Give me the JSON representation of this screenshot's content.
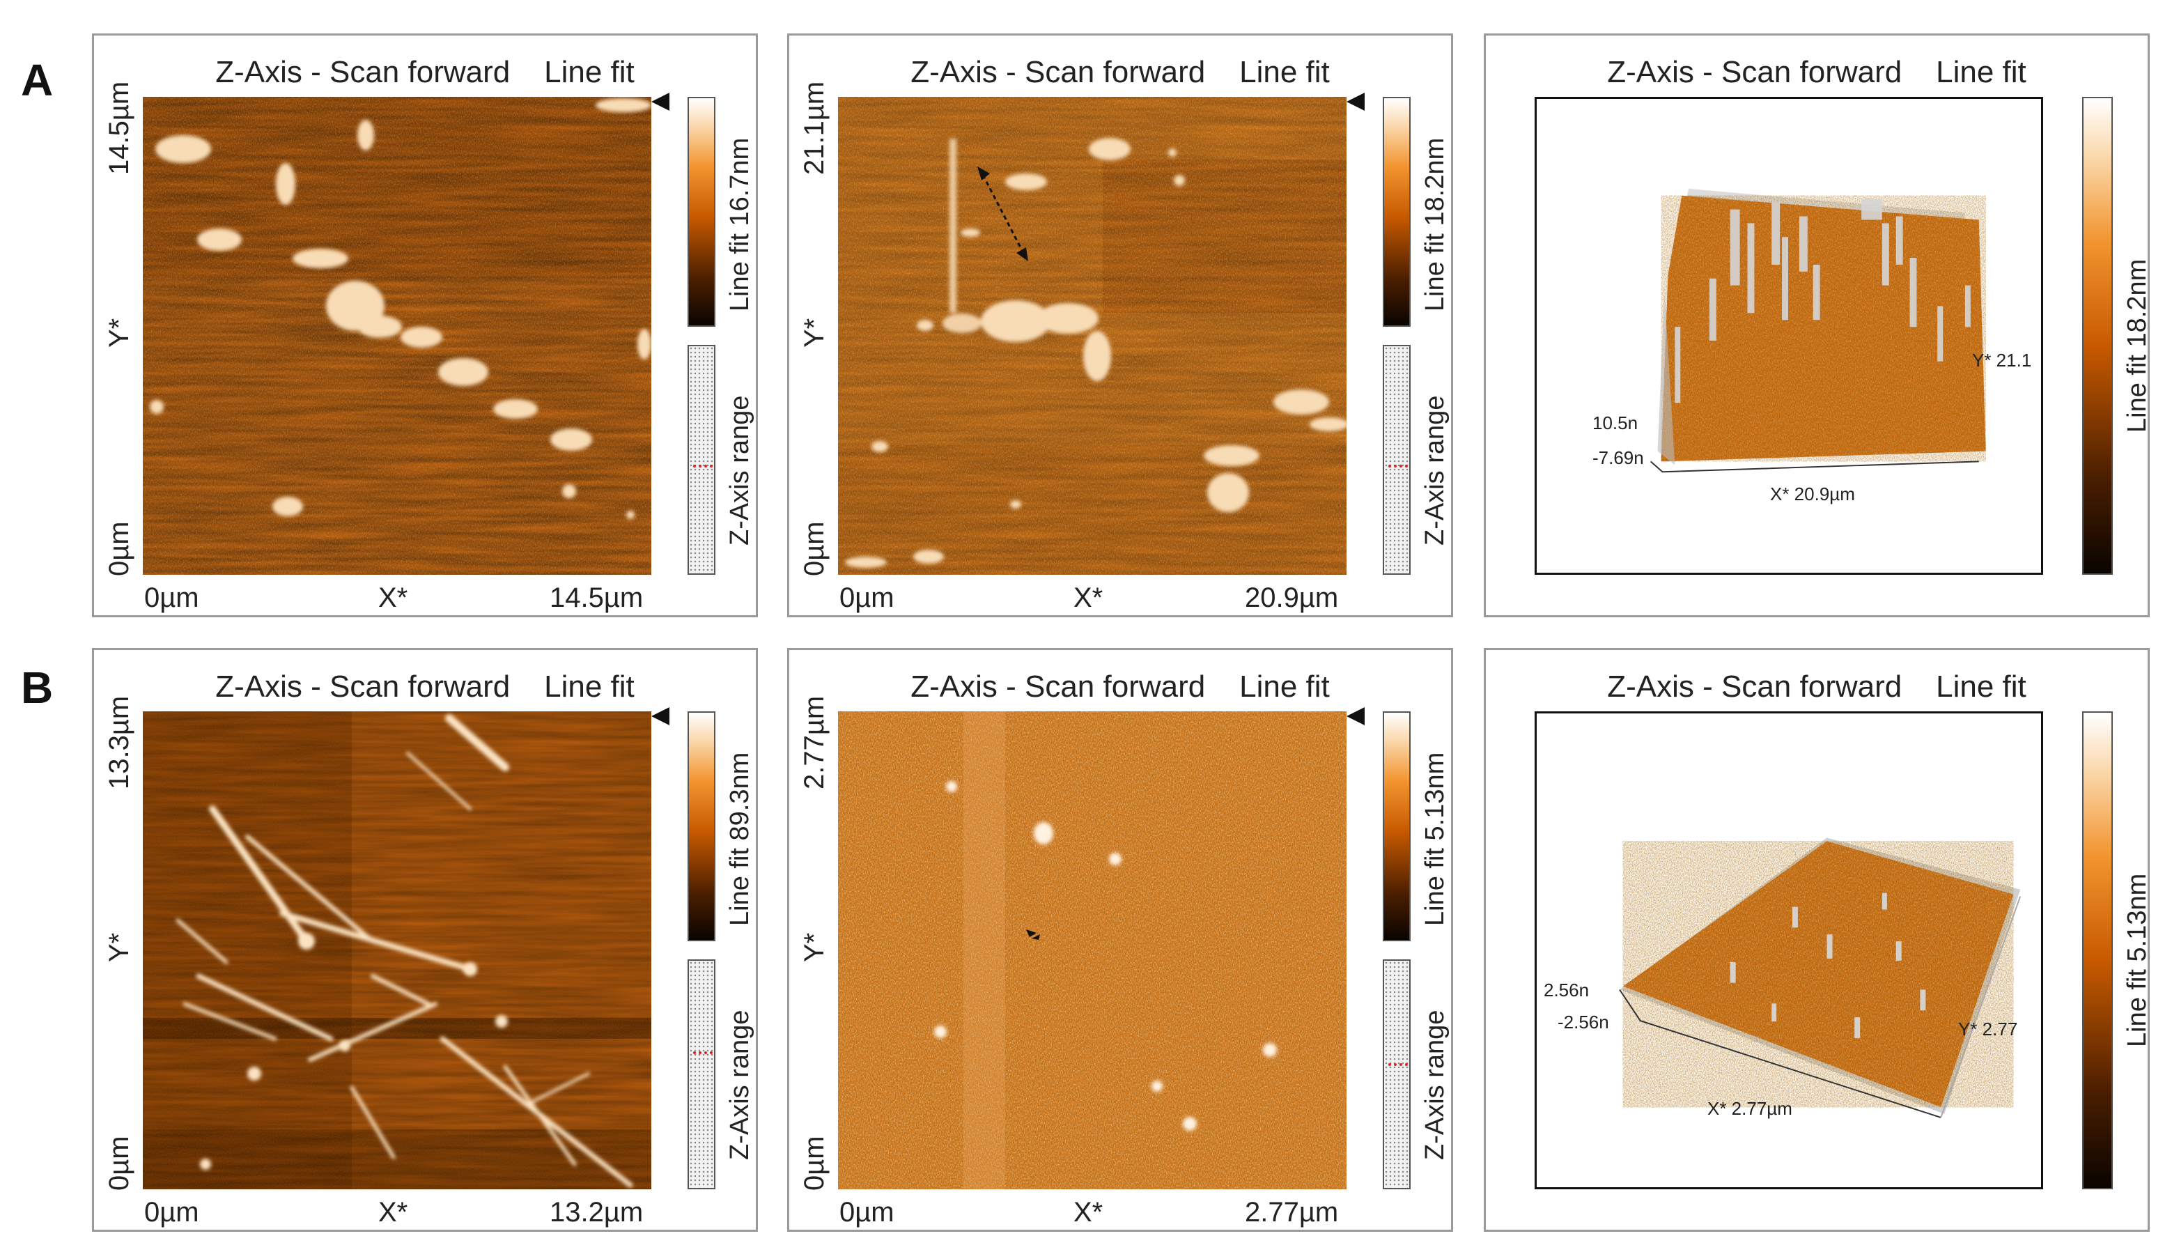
{
  "labels": {
    "row_a": "A",
    "row_b": "B"
  },
  "colors": {
    "afm_base": "#c4610f",
    "afm_dark": "#5a2400",
    "afm_light": "#fbe3c2",
    "panel_border": "#9a9a9a"
  },
  "row_a": {
    "panel1": {
      "title": "Z-Axis - Scan forward    Line fit",
      "y_top": "14.5µm",
      "y_mid": "Y*",
      "y_bottom": "0µm",
      "x_left": "0µm",
      "x_mid": "X*",
      "x_right": "14.5µm",
      "colorbar_label": "Line fit 16.7nm",
      "range_label": "Z-Axis range",
      "range_level": 0.52
    },
    "panel2": {
      "title": "Z-Axis - Scan forward    Line fit",
      "y_top": "21.1µm",
      "y_mid": "Y*",
      "y_bottom": "0µm",
      "x_left": "0µm",
      "x_mid": "X*",
      "x_right": "20.9µm",
      "colorbar_label": "Line fit 18.2nm",
      "range_label": "Z-Axis range",
      "range_level": 0.52
    },
    "panel3": {
      "title": "Z-Axis - Scan forward    Line fit",
      "colorbar_label": "Line fit 18.2nm",
      "z_max": "10.5n",
      "z_min": "-7.69n",
      "x_axis": "X* 20.9µm",
      "y_axis": "Y* 21.1"
    }
  },
  "row_b": {
    "panel1": {
      "title": "Z-Axis - Scan forward    Line fit",
      "y_top": "13.3µm",
      "y_mid": "Y*",
      "y_bottom": "0µm",
      "x_left": "0µm",
      "x_mid": "X*",
      "x_right": "13.2µm",
      "colorbar_label": "Line fit 89.3nm",
      "range_label": "Z-Axis range",
      "range_level": 0.4
    },
    "panel2": {
      "title": "Z-Axis - Scan forward    Line fit",
      "y_top": "2.77µm",
      "y_mid": "Y*",
      "y_bottom": "0µm",
      "x_left": "0µm",
      "x_mid": "X*",
      "x_right": "2.77µm",
      "colorbar_label": "Line fit 5.13nm",
      "range_label": "Z-Axis range",
      "range_level": 0.45
    },
    "panel3": {
      "title": "Z-Axis - Scan forward    Line fit",
      "colorbar_label": "Line fit 5.13nm",
      "z_max": "2.56n",
      "z_min": "-2.56n",
      "x_axis": "X* 2.77µm",
      "y_axis": "Y* 2.77"
    }
  }
}
